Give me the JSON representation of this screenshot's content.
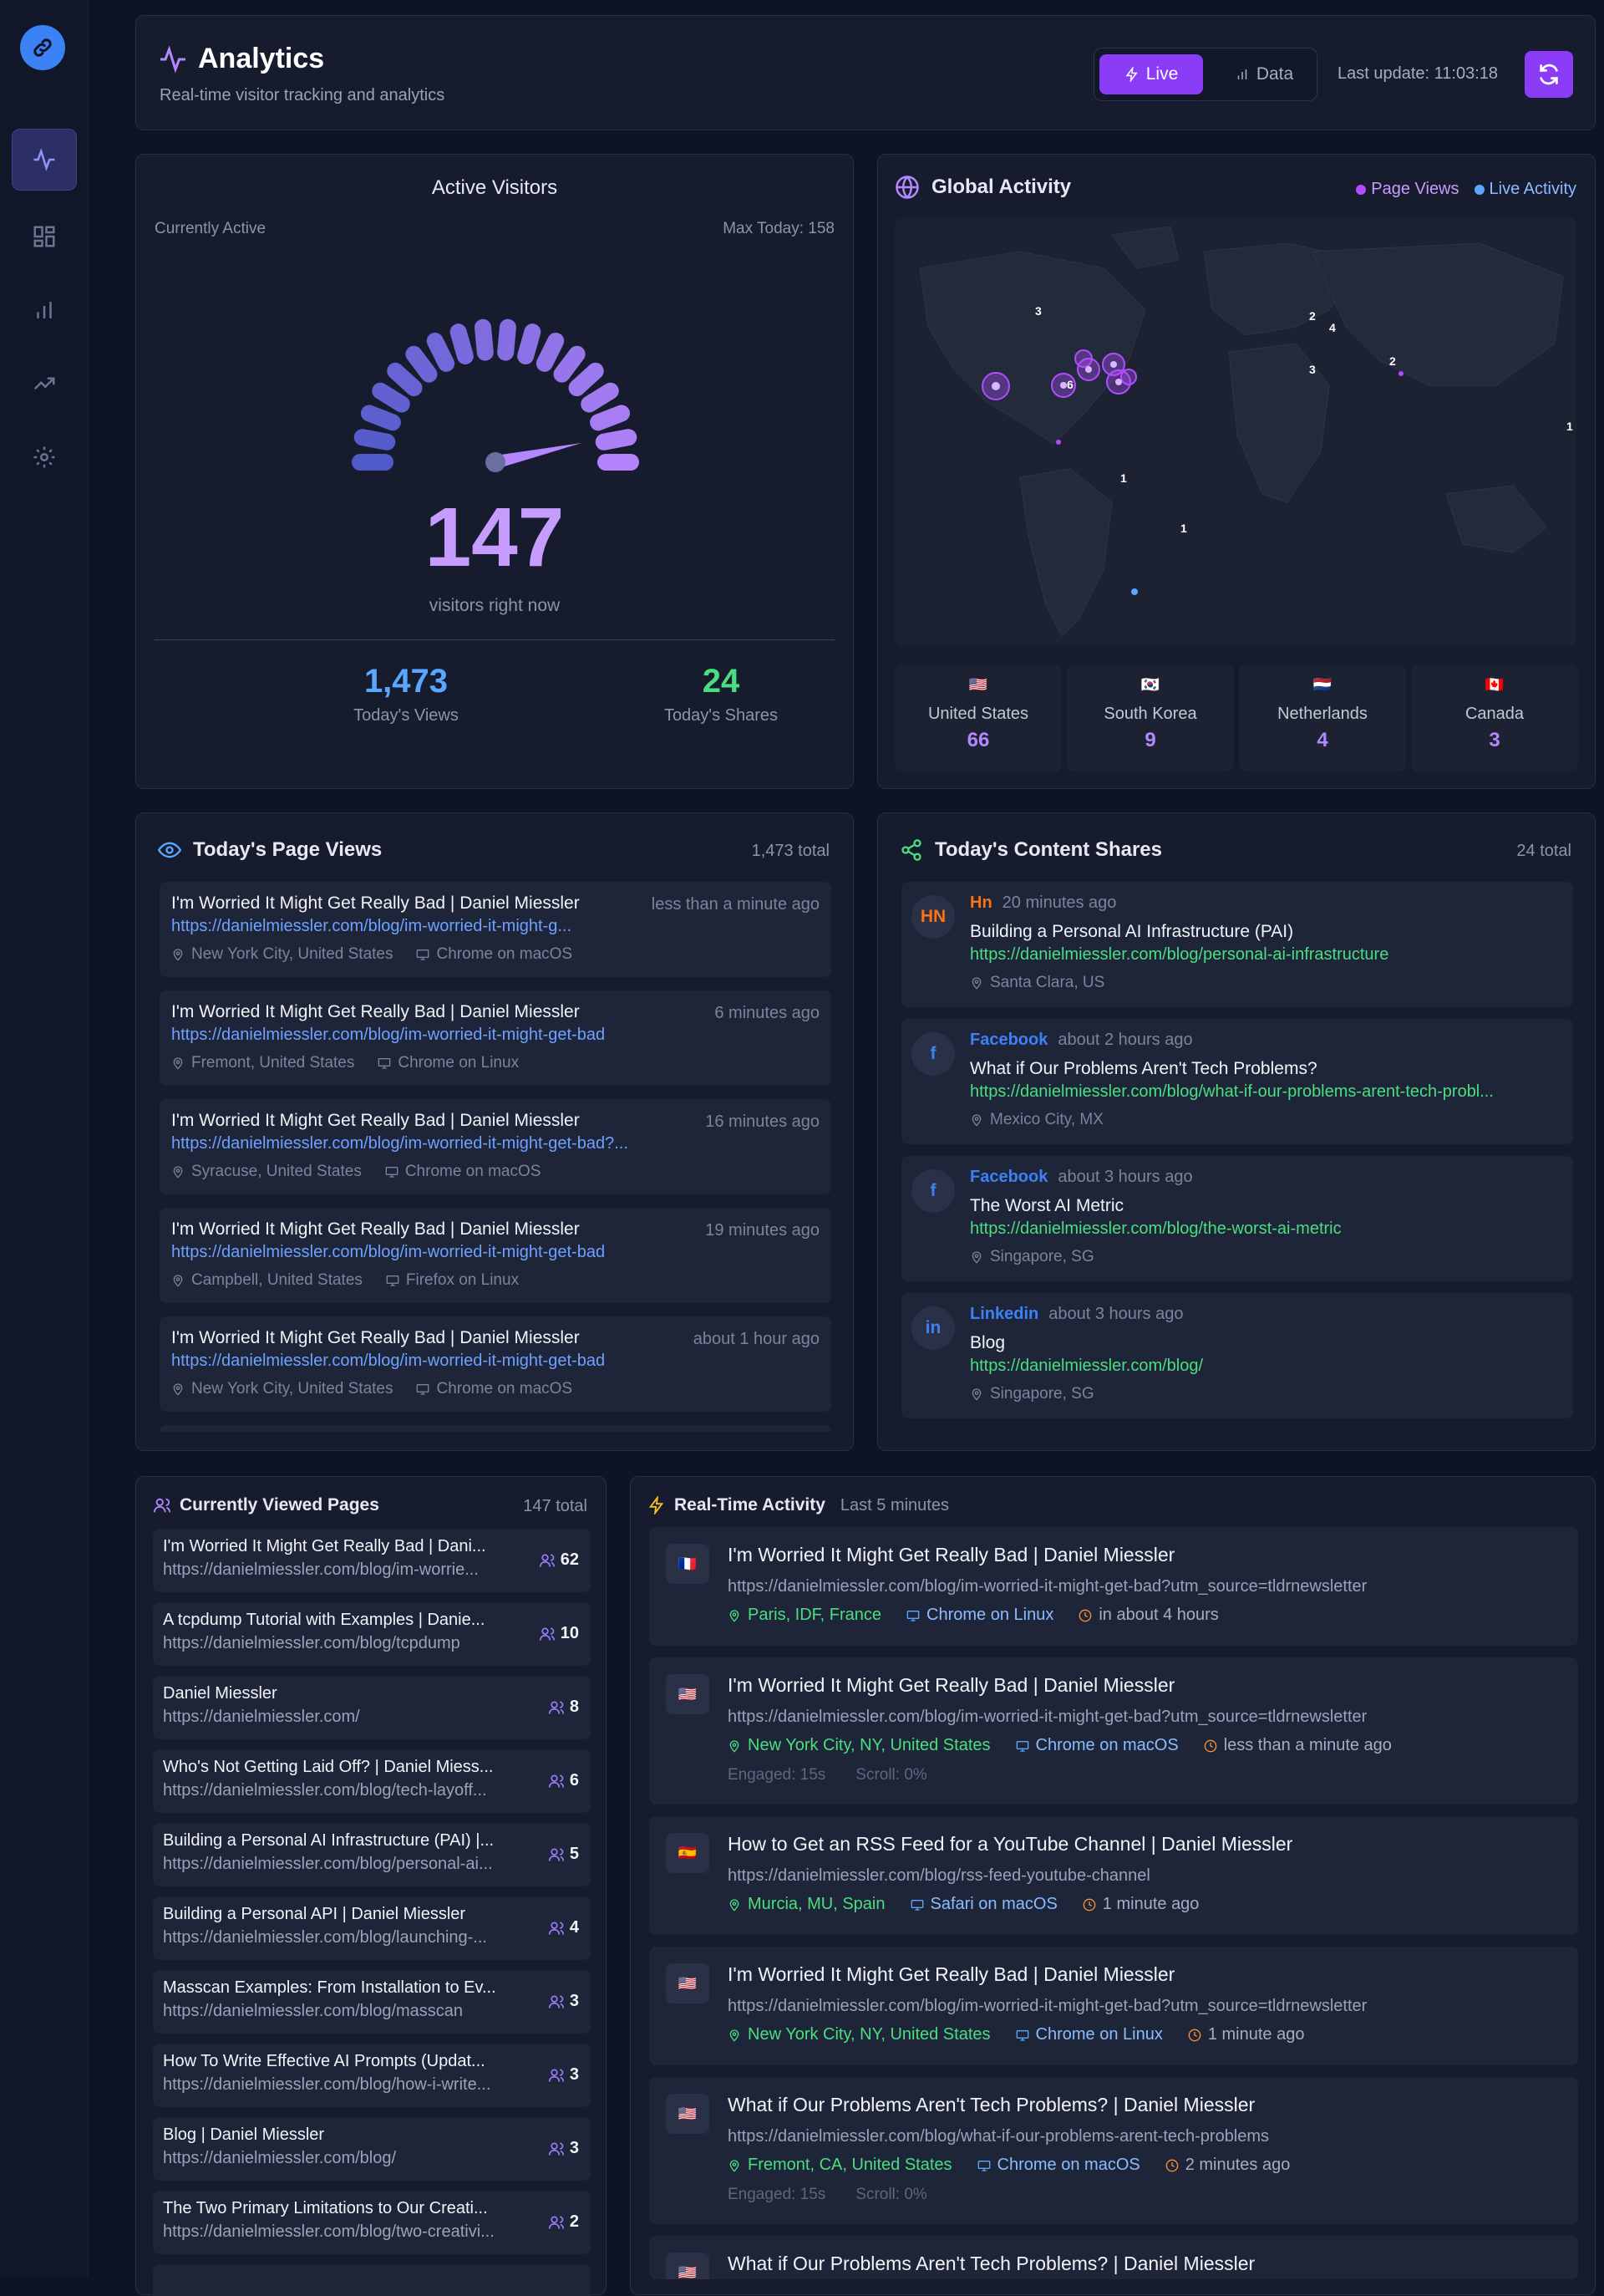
{
  "header": {
    "title": "Analytics",
    "subtitle": "Real-time visitor tracking and analytics",
    "live_label": "Live",
    "data_label": "Data",
    "last_update": "Last update: 11:03:18"
  },
  "gauge": {
    "title": "Active Visitors",
    "currently": "Currently Active",
    "max_today": "Max Today: 158",
    "value": "147",
    "label": "visitors right now",
    "fraction": 0.93,
    "today_views": "1,473",
    "today_views_label": "Today's Views",
    "today_shares": "24",
    "today_shares_label": "Today's Shares"
  },
  "global": {
    "title": "Global Activity",
    "legend_pv": "Page Views",
    "legend_live": "Live Activity",
    "map_labels": [
      "3",
      "2",
      "4",
      "2",
      "3",
      "6",
      "1",
      "1",
      "1"
    ],
    "countries": [
      {
        "name": "United States",
        "count": "66",
        "flag": "🇺🇸"
      },
      {
        "name": "South Korea",
        "count": "9",
        "flag": "🇰🇷"
      },
      {
        "name": "Netherlands",
        "count": "4",
        "flag": "🇳🇱"
      },
      {
        "name": "Canada",
        "count": "3",
        "flag": "🇨🇦"
      }
    ]
  },
  "page_views": {
    "title": "Today's Page Views",
    "total": "1,473 total",
    "items": [
      {
        "title": "I'm Worried It Might Get Really Bad | Daniel Miessler",
        "time": "less than a minute ago",
        "url": "https://danielmiessler.com/blog/im-worried-it-might-g...",
        "loc": "New York City, United States",
        "browser": "Chrome on macOS"
      },
      {
        "title": "I'm Worried It Might Get Really Bad | Daniel Miessler",
        "time": "6 minutes ago",
        "url": "https://danielmiessler.com/blog/im-worried-it-might-get-bad",
        "loc": "Fremont, United States",
        "browser": "Chrome on Linux"
      },
      {
        "title": "I'm Worried It Might Get Really Bad | Daniel Miessler",
        "time": "16 minutes ago",
        "url": "https://danielmiessler.com/blog/im-worried-it-might-get-bad?...",
        "loc": "Syracuse, United States",
        "browser": "Chrome on macOS"
      },
      {
        "title": "I'm Worried It Might Get Really Bad | Daniel Miessler",
        "time": "19 minutes ago",
        "url": "https://danielmiessler.com/blog/im-worried-it-might-get-bad",
        "loc": "Campbell, United States",
        "browser": "Firefox on Linux"
      },
      {
        "title": "I'm Worried It Might Get Really Bad | Daniel Miessler",
        "time": "about 1 hour ago",
        "url": "https://danielmiessler.com/blog/im-worried-it-might-get-bad",
        "loc": "New York City, United States",
        "browser": "Chrome on macOS"
      }
    ]
  },
  "shares": {
    "title": "Today's Content Shares",
    "total": "24 total",
    "items": [
      {
        "badge": "HN",
        "source": "Hn",
        "time": "20 minutes ago",
        "title": "Building a Personal AI Infrastructure (PAI)",
        "url": "https://danielmiessler.com/blog/personal-ai-infrastructure",
        "loc": "Santa Clara, US",
        "color": "#f97316"
      },
      {
        "badge": "f",
        "source": "Facebook",
        "time": "about 2 hours ago",
        "title": "What if Our Problems Aren't Tech Problems?",
        "url": "https://danielmiessler.com/blog/what-if-our-problems-arent-tech-probl...",
        "loc": "Mexico City, MX",
        "color": "#3b82f6"
      },
      {
        "badge": "f",
        "source": "Facebook",
        "time": "about 3 hours ago",
        "title": "The Worst AI Metric",
        "url": "https://danielmiessler.com/blog/the-worst-ai-metric",
        "loc": "Singapore, SG",
        "color": "#3b82f6"
      },
      {
        "badge": "in",
        "source": "Linkedin",
        "time": "about 3 hours ago",
        "title": "Blog",
        "url": "https://danielmiessler.com/blog/",
        "loc": "Singapore, SG",
        "color": "#3b82f6"
      }
    ]
  },
  "current": {
    "title": "Currently Viewed Pages",
    "total": "147 total",
    "items": [
      {
        "title": "I'm Worried It Might Get Really Bad | Dani...",
        "url": "https://danielmiessler.com/blog/im-worrie...",
        "count": "62"
      },
      {
        "title": "A tcpdump Tutorial with Examples | Danie...",
        "url": "https://danielmiessler.com/blog/tcpdump",
        "count": "10"
      },
      {
        "title": "Daniel Miessler",
        "url": "https://danielmiessler.com/",
        "count": "8"
      },
      {
        "title": "Who's Not Getting Laid Off? | Daniel Miess...",
        "url": "https://danielmiessler.com/blog/tech-layoff...",
        "count": "6"
      },
      {
        "title": "Building a Personal AI Infrastructure (PAI) |...",
        "url": "https://danielmiessler.com/blog/personal-ai...",
        "count": "5"
      },
      {
        "title": "Building a Personal API | Daniel Miessler",
        "url": "https://danielmiessler.com/blog/launching-...",
        "count": "4"
      },
      {
        "title": "Masscan Examples: From Installation to Ev...",
        "url": "https://danielmiessler.com/blog/masscan",
        "count": "3"
      },
      {
        "title": "How To Write Effective AI Prompts (Updat...",
        "url": "https://danielmiessler.com/blog/how-i-write...",
        "count": "3"
      },
      {
        "title": "Blog | Daniel Miessler",
        "url": "https://danielmiessler.com/blog/",
        "count": "3"
      },
      {
        "title": "The Two Primary Limitations to Our Creati...",
        "url": "https://danielmiessler.com/blog/two-creativi...",
        "count": "2"
      }
    ]
  },
  "realtime": {
    "title": "Real-Time Activity",
    "subtitle": "Last 5 minutes",
    "items": [
      {
        "flag": "🇫🇷",
        "title": "I'm Worried It Might Get Really Bad | Daniel Miessler",
        "url": "https://danielmiessler.com/blog/im-worried-it-might-get-bad?utm_source=tldrnewsletter",
        "loc": "Paris, IDF, France",
        "browser": "Chrome on Linux",
        "time": "in about 4 hours",
        "engaged": "",
        "scroll": ""
      },
      {
        "flag": "🇺🇸",
        "title": "I'm Worried It Might Get Really Bad | Daniel Miessler",
        "url": "https://danielmiessler.com/blog/im-worried-it-might-get-bad?utm_source=tldrnewsletter",
        "loc": "New York City, NY, United States",
        "browser": "Chrome on macOS",
        "time": "less than a minute ago",
        "engaged": "Engaged: 15s",
        "scroll": "Scroll: 0%"
      },
      {
        "flag": "🇪🇸",
        "title": "How to Get an RSS Feed for a YouTube Channel | Daniel Miessler",
        "url": "https://danielmiessler.com/blog/rss-feed-youtube-channel",
        "loc": "Murcia, MU, Spain",
        "browser": "Safari on macOS",
        "time": "1 minute ago",
        "engaged": "",
        "scroll": ""
      },
      {
        "flag": "🇺🇸",
        "title": "I'm Worried It Might Get Really Bad | Daniel Miessler",
        "url": "https://danielmiessler.com/blog/im-worried-it-might-get-bad?utm_source=tldrnewsletter",
        "loc": "New York City, NY, United States",
        "browser": "Chrome on Linux",
        "time": "1 minute ago",
        "engaged": "",
        "scroll": ""
      },
      {
        "flag": "🇺🇸",
        "title": "What if Our Problems Aren't Tech Problems? | Daniel Miessler",
        "url": "https://danielmiessler.com/blog/what-if-our-problems-arent-tech-problems",
        "loc": "Fremont, CA, United States",
        "browser": "Chrome on macOS",
        "time": "2 minutes ago",
        "engaged": "Engaged: 15s",
        "scroll": "Scroll: 0%"
      },
      {
        "flag": "🇺🇸",
        "title": "What if Our Problems Aren't Tech Problems? | Daniel Miessler",
        "url": "",
        "loc": "",
        "browser": "",
        "time": "",
        "engaged": "",
        "scroll": ""
      }
    ]
  }
}
